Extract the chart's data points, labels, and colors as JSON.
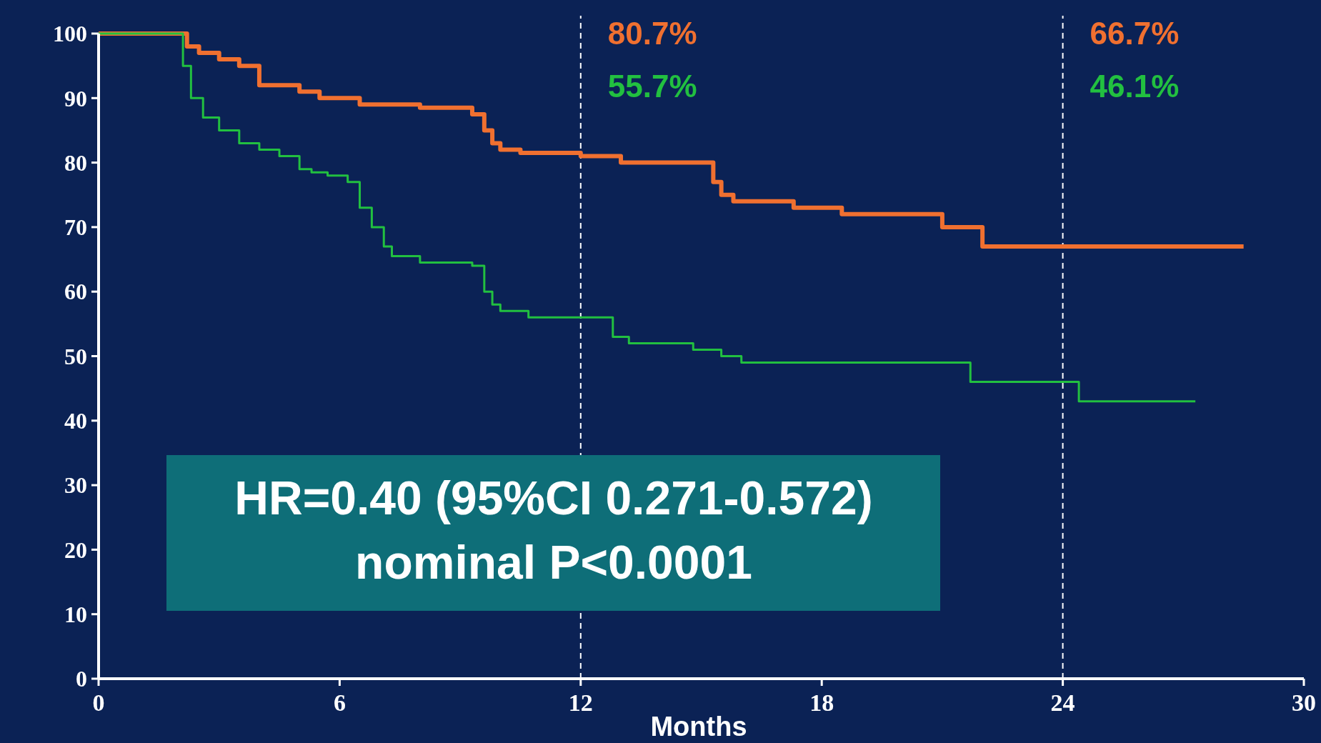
{
  "chart_data": {
    "type": "step",
    "xlabel": "Months",
    "xlim": [
      0,
      30
    ],
    "xticks": [
      0,
      6,
      12,
      18,
      24,
      30
    ],
    "ylim": [
      0,
      100
    ],
    "yticks": [
      0,
      10,
      20,
      30,
      40,
      50,
      60,
      70,
      80,
      90,
      100
    ],
    "grid": false,
    "series": [
      {
        "color": "#f07030",
        "x": [
          0,
          2.2,
          2.5,
          3,
          3.5,
          4,
          5,
          5.5,
          6.5,
          8,
          9.3,
          9.6,
          9.8,
          10,
          10.5,
          12,
          13,
          15.3,
          15.5,
          15.8,
          16.2,
          17.3,
          18.5,
          21,
          22,
          28.5
        ],
        "values": [
          100,
          98,
          97,
          96,
          95,
          92,
          91,
          90,
          89,
          88.5,
          87.5,
          85,
          83,
          82,
          81.5,
          81,
          80,
          77,
          75,
          74,
          74,
          73,
          72,
          70,
          67,
          67
        ]
      },
      {
        "color": "#22c040",
        "x": [
          0,
          2.1,
          2.3,
          2.6,
          3,
          3.5,
          4,
          4.5,
          5,
          5.3,
          5.7,
          6.2,
          6.5,
          6.8,
          7.1,
          7.3,
          8,
          9.3,
          9.6,
          9.8,
          10,
          10.7,
          12.5,
          12.8,
          13.2,
          14.8,
          15.5,
          16,
          21.7,
          24.4,
          27.3
        ],
        "values": [
          100,
          95,
          90,
          87,
          85,
          83,
          82,
          81,
          79,
          78.5,
          78,
          77,
          73,
          70,
          67,
          65.5,
          64.5,
          64,
          60,
          58,
          57,
          56,
          56,
          53,
          52,
          51,
          50,
          49,
          46,
          43,
          43
        ]
      }
    ],
    "ref_lines": [
      {
        "axis": "x",
        "value": 12,
        "color": "#ffffff",
        "line_style": "dashed"
      },
      {
        "axis": "x",
        "value": 24,
        "color": "#ffffff",
        "line_style": "dashed"
      }
    ],
    "annotations": [
      "80.7%",
      "55.7%",
      "66.7%",
      "46.1%",
      "HR=0.40 (95%CI 0.271-0.572)\nnominal P<0.0001"
    ]
  }
}
